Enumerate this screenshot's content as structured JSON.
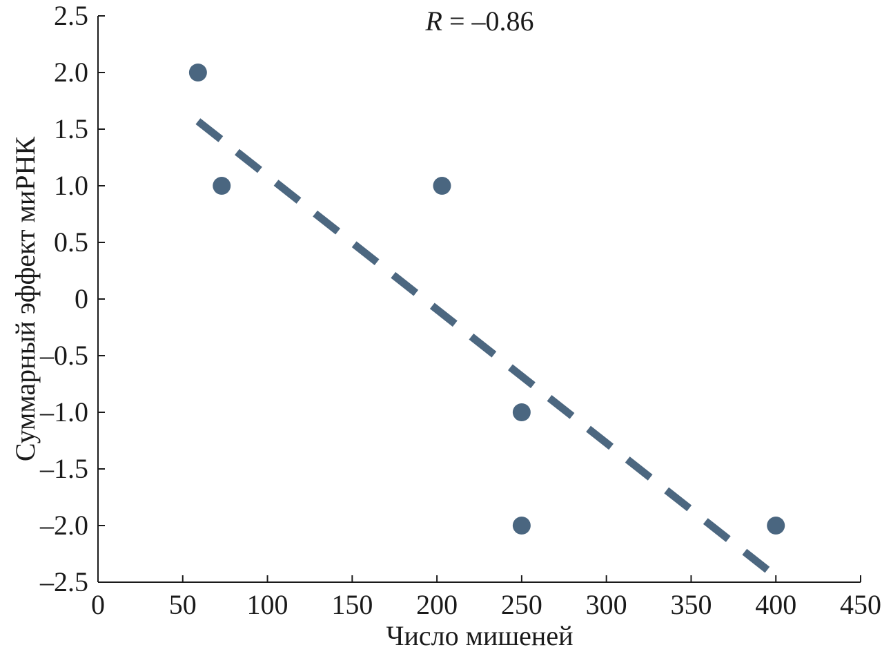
{
  "chart_data": {
    "type": "scatter",
    "title": "",
    "annotation": {
      "prefix": "R",
      "text": " = –0.86"
    },
    "xlabel": "Число мишеней",
    "ylabel": "Суммарный эффект миРНК",
    "xlim": [
      0,
      450
    ],
    "ylim": [
      -2.5,
      2.5
    ],
    "x_ticks": [
      0,
      50,
      100,
      150,
      200,
      250,
      300,
      350,
      400,
      450
    ],
    "x_tick_labels": [
      "0",
      "50",
      "100",
      "150",
      "200",
      "250",
      "300",
      "350",
      "400",
      "450"
    ],
    "y_ticks": [
      2.5,
      2.0,
      1.5,
      1.0,
      0.5,
      0,
      -0.5,
      -1.0,
      -1.5,
      -2.0,
      -2.5
    ],
    "y_tick_labels": [
      "2.5",
      "2.0",
      "1.5",
      "1.0",
      "0.5",
      "0",
      "–0.5",
      "–1.0",
      "–1.5",
      "–2.0",
      "–2.5"
    ],
    "grid": false,
    "series": [
      {
        "x": [
          59,
          73,
          203,
          250,
          250,
          400
        ],
        "y": [
          2.0,
          1.0,
          1.0,
          -1.0,
          -2.0,
          -2.0
        ],
        "color": "#4a6680"
      }
    ],
    "trendline": {
      "style": "dashed",
      "color": "#4c6780",
      "x": [
        59,
        400
      ],
      "y": [
        1.57,
        -2.45
      ]
    }
  }
}
